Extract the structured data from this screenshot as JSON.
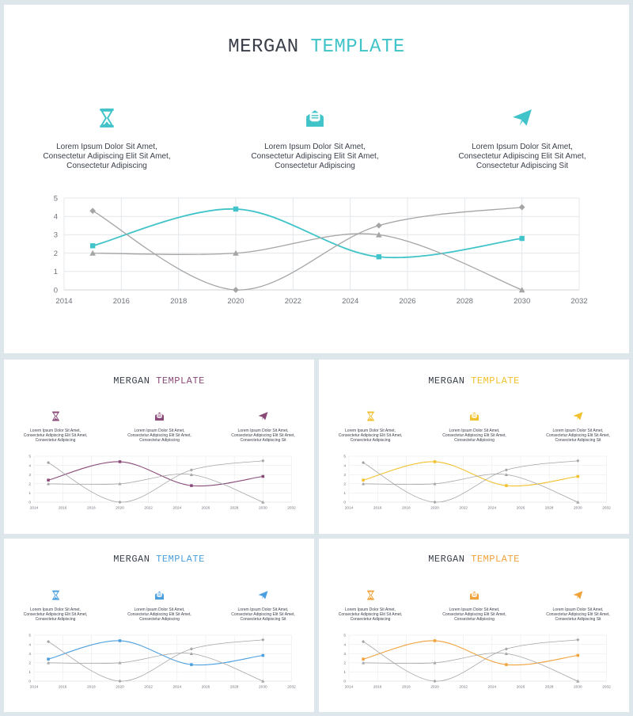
{
  "slides": [
    {
      "title_part1": "MERGAN",
      "title_part2": "TEMPLATE",
      "accent": "#41c4c9",
      "icons": [
        "hourglass-icon",
        "envelope-icon",
        "paper-plane-icon"
      ],
      "captions": [
        [
          "Lorem Ipsum Dolor Sit Amet,",
          "Consectetur Adipiscing Elit Sit Amet,",
          "Consectetur Adipiscing"
        ],
        [
          "Lorem Ipsum Dolor Sit Amet,",
          "Consectetur Adipiscing Elit Sit Amet,",
          "Consectetur Adipiscing"
        ],
        [
          "Lorem Ipsum Dolor Sit Amet,",
          "Consectetur Adipiscing Elit Sit Amet,",
          "Consectetur Adipiscing Sit"
        ]
      ]
    },
    {
      "title_part1": "MERGAN",
      "title_part2": "TEMPLATE",
      "accent": "#8a4a78",
      "icons": [
        "hourglass-icon",
        "envelope-icon",
        "paper-plane-icon"
      ],
      "captions": [
        [
          "Lorem Ipsum Dolor Sit Amet,",
          "Consectetur Adipiscing Elit Sit Amet,",
          "Consectetur Adipiscing"
        ],
        [
          "Lorem Ipsum Dolor Sit Amet,",
          "Consectetur Adipiscing Elit Sit Amet,",
          "Consectetur Adipiscing"
        ],
        [
          "Lorem Ipsum Dolor Sit Amet,",
          "Consectetur Adipiscing Elit Sit Amet,",
          "Consectetur Adipiscing Sit"
        ]
      ]
    },
    {
      "title_part1": "MERGAN",
      "title_part2": "TEMPLATE",
      "accent": "#f2c12e",
      "icons": [
        "hourglass-icon",
        "envelope-icon",
        "paper-plane-icon"
      ],
      "captions": [
        [
          "Lorem Ipsum Dolor Sit Amet,",
          "Consectetur Adipiscing Elit Sit Amet,",
          "Consectetur Adipiscing"
        ],
        [
          "Lorem Ipsum Dolor Sit Amet,",
          "Consectetur Adipiscing Elit Sit Amet,",
          "Consectetur Adipiscing"
        ],
        [
          "Lorem Ipsum Dolor Sit Amet,",
          "Consectetur Adipiscing Elit Sit Amet,",
          "Consectetur Adipiscing Sit"
        ]
      ]
    },
    {
      "title_part1": "MERGAN",
      "title_part2": "TEMPLATE",
      "accent": "#4b9fde",
      "icons": [
        "hourglass-icon",
        "envelope-icon",
        "paper-plane-icon"
      ],
      "captions": [
        [
          "Lorem Ipsum Dolor Sit Amet,",
          "Consectetur Adipiscing Elit Sit Amet,",
          "Consectetur Adipiscing"
        ],
        [
          "Lorem Ipsum Dolor Sit Amet,",
          "Consectetur Adipiscing Elit Sit Amet,",
          "Consectetur Adipiscing"
        ],
        [
          "Lorem Ipsum Dolor Sit Amet,",
          "Consectetur Adipiscing Elit Sit Amet,",
          "Consectetur Adipiscing Sit"
        ]
      ]
    },
    {
      "title_part1": "MERGAN",
      "title_part2": "TEMPLATE",
      "accent": "#f0a23b",
      "icons": [
        "hourglass-icon",
        "envelope-icon",
        "paper-plane-icon"
      ],
      "captions": [
        [
          "Lorem Ipsum Dolor Sit Amet,",
          "Consectetur Adipiscing Elit Sit Amet,",
          "Consectetur Adipiscing"
        ],
        [
          "Lorem Ipsum Dolor Sit Amet,",
          "Consectetur Adipiscing Elit Sit Amet,",
          "Consectetur Adipiscing"
        ],
        [
          "Lorem Ipsum Dolor Sit Amet,",
          "Consectetur Adipiscing Elit Sit Amet,",
          "Consectetur Adipiscing Sit"
        ]
      ]
    }
  ],
  "chart_data": {
    "type": "line",
    "smooth": true,
    "xlim": [
      2014,
      2032
    ],
    "xticks": [
      2014,
      2016,
      2018,
      2020,
      2022,
      2024,
      2026,
      2028,
      2030,
      2032
    ],
    "ylim": [
      0,
      5
    ],
    "yticks": [
      0,
      1,
      2,
      3,
      4,
      5
    ],
    "grid": true,
    "series": [
      {
        "color_role": "accent",
        "marker": "square",
        "x": [
          2015,
          2020,
          2025,
          2030
        ],
        "y": [
          2.4,
          4.4,
          1.8,
          2.8
        ]
      },
      {
        "color": "#a5a5a5",
        "marker": "diamond",
        "x": [
          2015,
          2020,
          2025,
          2030
        ],
        "y": [
          4.3,
          0.0,
          3.5,
          4.5
        ]
      },
      {
        "color": "#a5a5a5",
        "marker": "triangle",
        "x": [
          2015,
          2020,
          2025,
          2030
        ],
        "y": [
          2.0,
          2.0,
          3.0,
          0.0
        ]
      }
    ]
  }
}
